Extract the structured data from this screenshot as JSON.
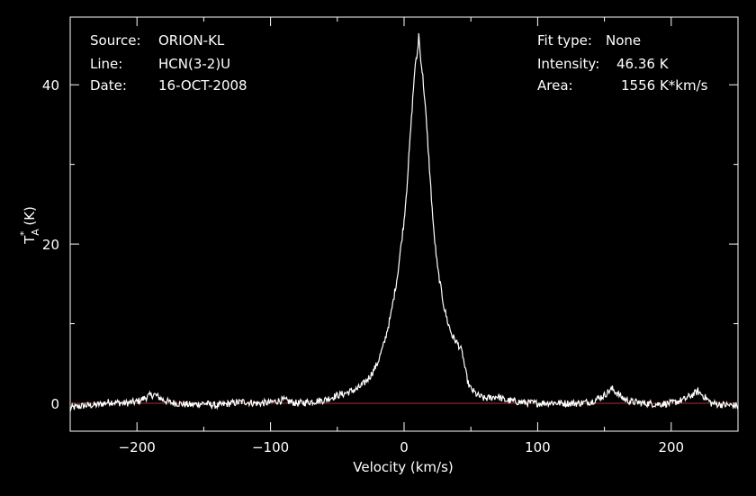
{
  "header_left": {
    "source_label": "Source:",
    "source_value": "ORION-KL",
    "line_label": "Line:",
    "line_value": "HCN(3-2)U",
    "date_label": "Date:",
    "date_value": "16-OCT-2008"
  },
  "header_right": {
    "fit_label": "Fit type:",
    "fit_value": "None",
    "intensity_label": "Intensity:",
    "intensity_value": "46.36 K",
    "area_label": "Area:",
    "area_value": "1556 K*km/s"
  },
  "colors": {
    "background": "#000000",
    "foreground": "#ffffff",
    "baseline": "#c0282a"
  },
  "chart_data": {
    "type": "line",
    "xlabel": "Velocity (km/s)",
    "ylabel_main": "T",
    "ylabel_sup": "*",
    "ylabel_sub": "A",
    "ylabel_unit": "(K)",
    "xlim": [
      -250,
      250
    ],
    "ylim": [
      -3.5,
      48.5
    ],
    "xticks": [
      -200,
      -100,
      0,
      100,
      200
    ],
    "xtick_labels": [
      "−200",
      "−100",
      "0",
      "100",
      "200"
    ],
    "yticks": [
      0,
      20,
      40
    ],
    "ytick_labels": [
      "0",
      "20",
      "40"
    ],
    "baseline_y": 0,
    "series": [
      {
        "x": [
          -250,
          -240,
          -230,
          -220,
          -210,
          -200,
          -195,
          -190,
          -187,
          -184,
          -180,
          -175,
          -170,
          -160,
          -150,
          -140,
          -130,
          -120,
          -110,
          -100,
          -95,
          -90,
          -85,
          -80,
          -70,
          -60,
          -50,
          -45,
          -40,
          -35,
          -30,
          -25,
          -20,
          -15,
          -10,
          -5,
          0,
          2,
          4,
          6,
          8,
          10,
          11,
          12,
          14,
          16,
          18,
          20,
          22,
          25,
          28,
          30,
          33,
          36,
          38,
          40,
          42,
          44,
          46,
          48,
          50,
          55,
          60,
          65,
          70,
          75,
          80,
          90,
          100,
          110,
          120,
          130,
          140,
          145,
          150,
          153,
          156,
          160,
          165,
          170,
          180,
          190,
          200,
          210,
          215,
          218,
          220,
          223,
          227,
          230,
          240,
          250
        ],
        "y": [
          -0.6,
          -0.3,
          -0.2,
          0.2,
          0.0,
          0.2,
          0.6,
          1.0,
          1.1,
          0.8,
          0.4,
          0.1,
          0.0,
          -0.2,
          0.0,
          -0.3,
          0.0,
          0.2,
          0.0,
          0.1,
          0.3,
          0.4,
          0.2,
          0.0,
          0.2,
          0.4,
          1.0,
          1.2,
          1.5,
          1.8,
          2.5,
          3.5,
          5.0,
          7.5,
          11.0,
          16.0,
          23.0,
          27.0,
          32.0,
          37.0,
          42.0,
          44.0,
          46.36,
          44.0,
          41.0,
          37.0,
          32.0,
          27.0,
          22.0,
          17.0,
          14.0,
          12.0,
          10.0,
          8.5,
          8.0,
          7.5,
          7.0,
          6.0,
          4.0,
          2.5,
          1.8,
          1.0,
          0.6,
          0.7,
          0.9,
          0.4,
          0.3,
          0.1,
          0.0,
          0.1,
          0.0,
          0.0,
          0.2,
          0.6,
          1.0,
          1.5,
          1.8,
          1.2,
          0.5,
          0.2,
          0.0,
          -0.1,
          0.0,
          0.5,
          1.0,
          1.3,
          1.5,
          1.1,
          0.5,
          0.0,
          -0.2,
          -0.3
        ]
      }
    ]
  }
}
